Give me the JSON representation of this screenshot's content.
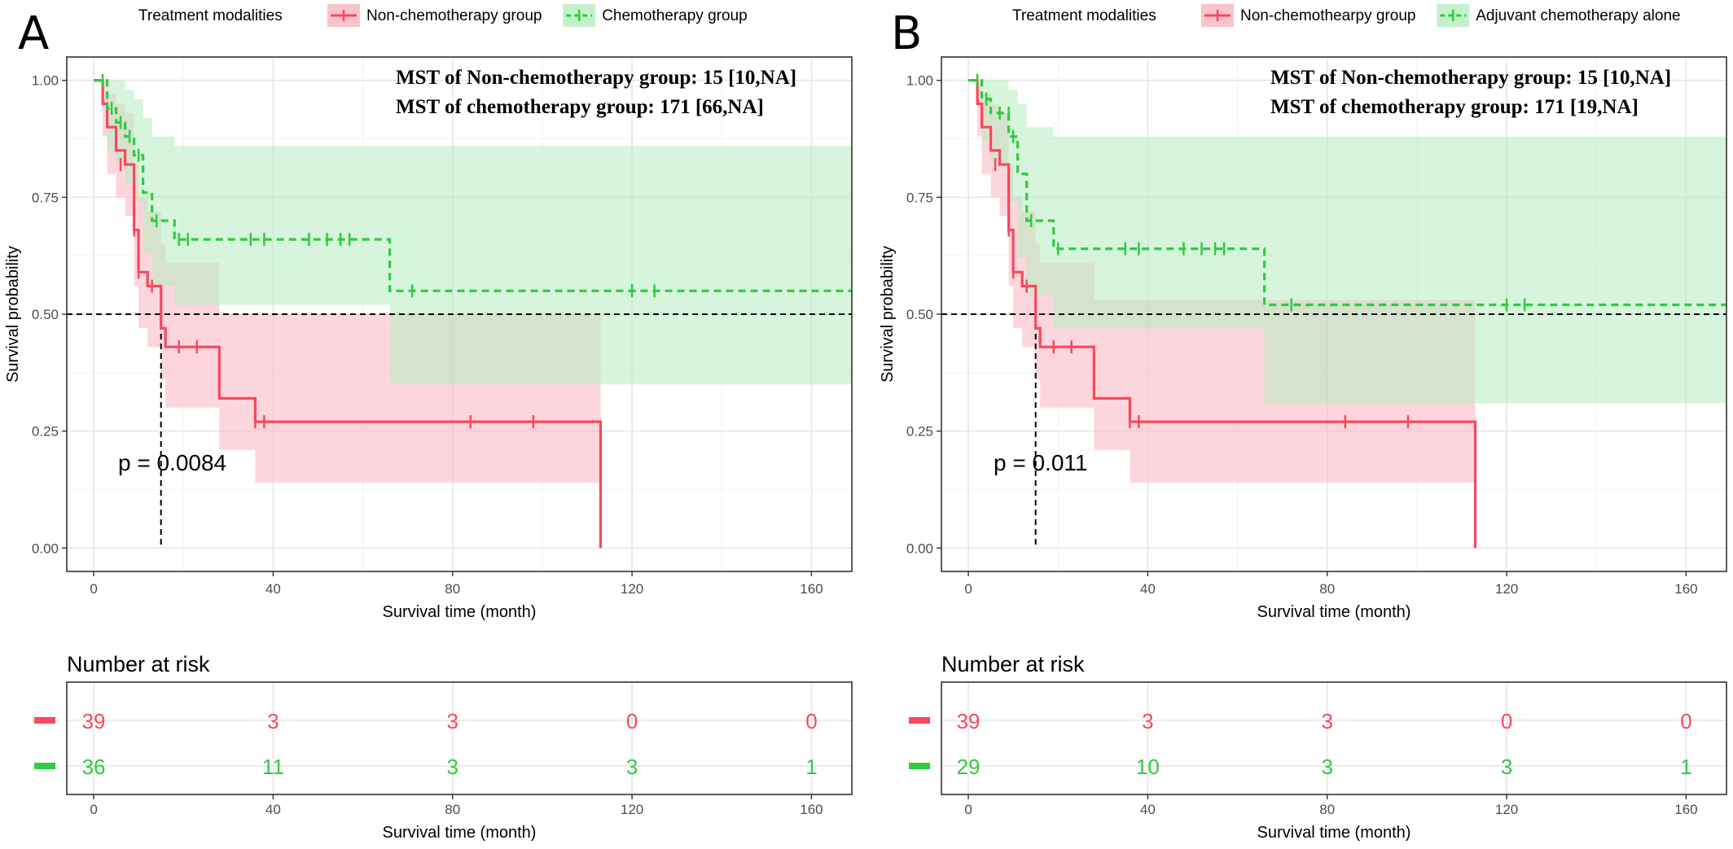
{
  "colors": {
    "non_chemo": "#F8485E",
    "chemo": "#2ECC40",
    "non_chemo_band": "#F9B4BF",
    "chemo_band": "#B5EDC0"
  },
  "chart_data": [
    {
      "type": "line",
      "panel_label": "A",
      "legend_title": "Treatment modalities",
      "legend_entries": [
        "Non-chemotherapy group",
        "Chemotherapy group"
      ],
      "annotations": [
        "MST of Non-chemotherapy group: 15 [10,NA]",
        "MST of chemotherapy group: 171 [66,NA]"
      ],
      "p_value_text": "p = 0.0084",
      "xlabel": "Survival time (month)",
      "ylabel": "Survival probability",
      "xlim": [
        -6,
        169
      ],
      "ylim": [
        -0.05,
        1.05
      ],
      "x_ticks": [
        0,
        40,
        80,
        120,
        160
      ],
      "y_ticks": [
        "0.00",
        "0.25",
        "0.50",
        "0.75",
        "1.00"
      ],
      "grid": true,
      "median_line": 0.5,
      "median_drop_x": 15,
      "series": [
        {
          "name": "Non-chemotherapy group",
          "line_style": "solid",
          "steps": [
            [
              0,
              1.0
            ],
            [
              2,
              0.95
            ],
            [
              3,
              0.9
            ],
            [
              5,
              0.85
            ],
            [
              7,
              0.82
            ],
            [
              9,
              0.68
            ],
            [
              10,
              0.59
            ],
            [
              12,
              0.56
            ],
            [
              15,
              0.47
            ],
            [
              16,
              0.43
            ],
            [
              28,
              0.32
            ],
            [
              36,
              0.27
            ],
            [
              113,
              0.0
            ]
          ],
          "end_x": 113,
          "censor": [
            [
              6,
              0.82
            ],
            [
              9,
              0.68
            ],
            [
              10,
              0.59
            ],
            [
              13,
              0.56
            ],
            [
              19,
              0.43
            ],
            [
              23,
              0.43
            ],
            [
              36,
              0.27
            ],
            [
              38,
              0.27
            ],
            [
              84,
              0.27
            ],
            [
              98,
              0.27
            ]
          ],
          "ci": [
            [
              0,
              1.0,
              1.0
            ],
            [
              2,
              1.0,
              0.88
            ],
            [
              3,
              0.97,
              0.8
            ],
            [
              5,
              0.95,
              0.75
            ],
            [
              7,
              0.93,
              0.71
            ],
            [
              9,
              0.82,
              0.56
            ],
            [
              10,
              0.75,
              0.47
            ],
            [
              12,
              0.72,
              0.43
            ],
            [
              15,
              0.65,
              0.36
            ],
            [
              16,
              0.61,
              0.3
            ],
            [
              28,
              0.5,
              0.21
            ],
            [
              36,
              0.5,
              0.14
            ],
            [
              113,
              0.5,
              0.14
            ]
          ],
          "ci_end_x": 113
        },
        {
          "name": "Chemotherapy group",
          "line_style": "dashed",
          "steps": [
            [
              0,
              1.0
            ],
            [
              3,
              0.94
            ],
            [
              5,
              0.91
            ],
            [
              7,
              0.88
            ],
            [
              9,
              0.84
            ],
            [
              11,
              0.76
            ],
            [
              13,
              0.7
            ],
            [
              18,
              0.66
            ],
            [
              66,
              0.55
            ]
          ],
          "end_x": 169,
          "censor": [
            [
              2,
              1.0
            ],
            [
              4,
              0.94
            ],
            [
              6,
              0.91
            ],
            [
              8,
              0.88
            ],
            [
              10,
              0.84
            ],
            [
              14,
              0.7
            ],
            [
              19,
              0.66
            ],
            [
              21,
              0.66
            ],
            [
              35,
              0.66
            ],
            [
              38,
              0.66
            ],
            [
              48,
              0.66
            ],
            [
              52,
              0.66
            ],
            [
              55,
              0.66
            ],
            [
              57,
              0.66
            ],
            [
              71,
              0.55
            ],
            [
              120,
              0.55
            ],
            [
              125,
              0.55
            ]
          ],
          "ci": [
            [
              0,
              1.0,
              1.0
            ],
            [
              3,
              1.0,
              0.85
            ],
            [
              5,
              1.0,
              0.82
            ],
            [
              7,
              0.98,
              0.78
            ],
            [
              9,
              0.96,
              0.74
            ],
            [
              11,
              0.92,
              0.63
            ],
            [
              13,
              0.88,
              0.56
            ],
            [
              18,
              0.86,
              0.52
            ],
            [
              66,
              0.86,
              0.35
            ]
          ],
          "ci_end_x": 169
        }
      ],
      "risk_table": {
        "title": "Number at risk",
        "xlabel": "Survival time (month)",
        "x": [
          0,
          40,
          80,
          120,
          160
        ],
        "rows": [
          {
            "series": "Non-chemotherapy group",
            "values": [
              "39",
              "3",
              "3",
              "0",
              "0"
            ]
          },
          {
            "series": "Chemotherapy group",
            "values": [
              "36",
              "11",
              "3",
              "3",
              "1"
            ]
          }
        ]
      }
    },
    {
      "type": "line",
      "panel_label": "B",
      "legend_title": "Treatment modalities",
      "legend_entries": [
        "Non-chemothearpy group",
        "Adjuvant chemotherapy alone"
      ],
      "annotations": [
        "MST of Non-chemotherapy group: 15 [10,NA]",
        "MST of chemotherapy group: 171 [19,NA]"
      ],
      "p_value_text": "p = 0.011",
      "xlabel": "Survival time (month)",
      "ylabel": "Survival probability",
      "xlim": [
        -6,
        169
      ],
      "ylim": [
        -0.05,
        1.05
      ],
      "x_ticks": [
        0,
        40,
        80,
        120,
        160
      ],
      "y_ticks": [
        "0.00",
        "0.25",
        "0.50",
        "0.75",
        "1.00"
      ],
      "grid": true,
      "median_line": 0.5,
      "median_drop_x": 15,
      "series": [
        {
          "name": "Non-chemothearpy group",
          "line_style": "solid",
          "steps": [
            [
              0,
              1.0
            ],
            [
              2,
              0.95
            ],
            [
              3,
              0.9
            ],
            [
              5,
              0.85
            ],
            [
              7,
              0.82
            ],
            [
              9,
              0.68
            ],
            [
              10,
              0.59
            ],
            [
              12,
              0.56
            ],
            [
              15,
              0.47
            ],
            [
              16,
              0.43
            ],
            [
              28,
              0.32
            ],
            [
              36,
              0.27
            ],
            [
              113,
              0.0
            ]
          ],
          "end_x": 113,
          "censor": [
            [
              6,
              0.82
            ],
            [
              9,
              0.68
            ],
            [
              10,
              0.59
            ],
            [
              13,
              0.56
            ],
            [
              19,
              0.43
            ],
            [
              23,
              0.43
            ],
            [
              36,
              0.27
            ],
            [
              38,
              0.27
            ],
            [
              84,
              0.27
            ],
            [
              98,
              0.27
            ]
          ],
          "ci": [
            [
              0,
              1.0,
              1.0
            ],
            [
              2,
              1.0,
              0.88
            ],
            [
              3,
              0.97,
              0.8
            ],
            [
              5,
              0.95,
              0.75
            ],
            [
              7,
              0.93,
              0.71
            ],
            [
              9,
              0.82,
              0.56
            ],
            [
              10,
              0.75,
              0.47
            ],
            [
              12,
              0.72,
              0.43
            ],
            [
              15,
              0.65,
              0.36
            ],
            [
              16,
              0.61,
              0.3
            ],
            [
              28,
              0.53,
              0.21
            ],
            [
              36,
              0.53,
              0.14
            ],
            [
              113,
              0.53,
              0.14
            ]
          ],
          "ci_end_x": 113
        },
        {
          "name": "Adjuvant chemotherapy alone",
          "line_style": "dashed",
          "steps": [
            [
              0,
              1.0
            ],
            [
              3,
              0.96
            ],
            [
              5,
              0.93
            ],
            [
              9,
              0.88
            ],
            [
              11,
              0.8
            ],
            [
              13,
              0.7
            ],
            [
              19,
              0.64
            ],
            [
              66,
              0.52
            ]
          ],
          "end_x": 169,
          "censor": [
            [
              2,
              1.0
            ],
            [
              4,
              0.96
            ],
            [
              7,
              0.93
            ],
            [
              9,
              0.93
            ],
            [
              10,
              0.88
            ],
            [
              14,
              0.7
            ],
            [
              20,
              0.64
            ],
            [
              35,
              0.64
            ],
            [
              38,
              0.64
            ],
            [
              48,
              0.64
            ],
            [
              52,
              0.64
            ],
            [
              55,
              0.64
            ],
            [
              57,
              0.64
            ],
            [
              72,
              0.52
            ],
            [
              120,
              0.52
            ],
            [
              124,
              0.52
            ]
          ],
          "ci": [
            [
              0,
              1.0,
              1.0
            ],
            [
              3,
              1.0,
              0.87
            ],
            [
              5,
              1.0,
              0.82
            ],
            [
              9,
              0.98,
              0.74
            ],
            [
              11,
              0.95,
              0.62
            ],
            [
              13,
              0.9,
              0.54
            ],
            [
              19,
              0.88,
              0.47
            ],
            [
              66,
              0.88,
              0.31
            ]
          ],
          "ci_end_x": 169
        }
      ],
      "risk_table": {
        "title": "Number at risk",
        "xlabel": "Survival time (month)",
        "x": [
          0,
          40,
          80,
          120,
          160
        ],
        "rows": [
          {
            "series": "Non-chemothearpy group",
            "values": [
              "39",
              "3",
              "3",
              "0",
              "0"
            ]
          },
          {
            "series": "Adjuvant chemotherapy alone",
            "values": [
              "29",
              "10",
              "3",
              "3",
              "1"
            ]
          }
        ]
      }
    }
  ]
}
